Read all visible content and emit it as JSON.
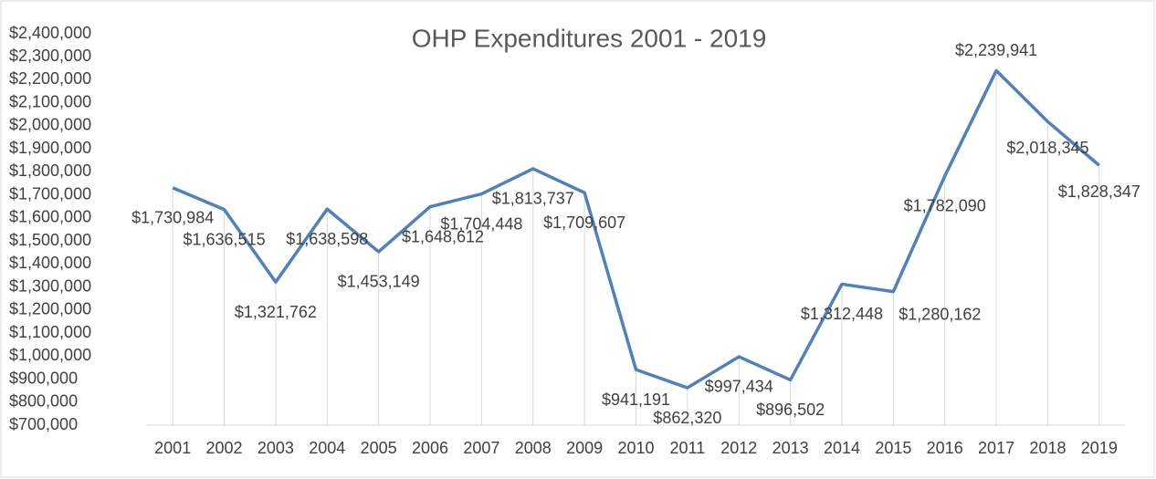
{
  "chart_data": {
    "type": "line",
    "title": "OHP Expenditures 2001 - 2019",
    "categories": [
      "2001",
      "2002",
      "2003",
      "2004",
      "2005",
      "2006",
      "2007",
      "2008",
      "2009",
      "2010",
      "2011",
      "2012",
      "2013",
      "2014",
      "2015",
      "2016",
      "2017",
      "2018",
      "2019"
    ],
    "series": [
      {
        "name": "OHP Expenditures",
        "color": "#4f81bd",
        "values": [
          1730984,
          1636515,
          1321762,
          1638598,
          1453149,
          1648612,
          1704448,
          1813737,
          1709607,
          941191,
          862320,
          997434,
          896502,
          1312448,
          1280162,
          1782090,
          2239941,
          2018345,
          1828347
        ],
        "value_labels": [
          "$1,730,984",
          "$1,636,515",
          "$1,321,762",
          "$1,638,598",
          "$1,453,149",
          "$1,648,612",
          "$1,704,448",
          "$1,813,737",
          "$1,709,607",
          "$941,191",
          "$862,320",
          "$997,434",
          "$896,502",
          "$1,312,448",
          "$1,280,162",
          "$1,782,090",
          "$2,239,941",
          "$2,018,345",
          "$1,828,347"
        ]
      }
    ],
    "ylim": [
      700000,
      2400000
    ],
    "yticks": [
      {
        "value": 700000,
        "label": "$700,000"
      },
      {
        "value": 800000,
        "label": "$800,000"
      },
      {
        "value": 900000,
        "label": "$900,000"
      },
      {
        "value": 1000000,
        "label": "$1,000,000"
      },
      {
        "value": 1100000,
        "label": "$1,100,000"
      },
      {
        "value": 1200000,
        "label": "$1,200,000"
      },
      {
        "value": 1300000,
        "label": "$1,300,000"
      },
      {
        "value": 1400000,
        "label": "$1,400,000"
      },
      {
        "value": 1500000,
        "label": "$1,500,000"
      },
      {
        "value": 1600000,
        "label": "$1,600,000"
      },
      {
        "value": 1700000,
        "label": "$1,700,000"
      },
      {
        "value": 1800000,
        "label": "$1,800,000"
      },
      {
        "value": 1900000,
        "label": "$1,900,000"
      },
      {
        "value": 2000000,
        "label": "$2,000,000"
      },
      {
        "value": 2100000,
        "label": "$2,100,000"
      },
      {
        "value": 2200000,
        "label": "$2,200,000"
      },
      {
        "value": 2300000,
        "label": "$2,300,000"
      },
      {
        "value": 2400000,
        "label": "$2,400,000"
      }
    ],
    "drop_lines": true
  }
}
